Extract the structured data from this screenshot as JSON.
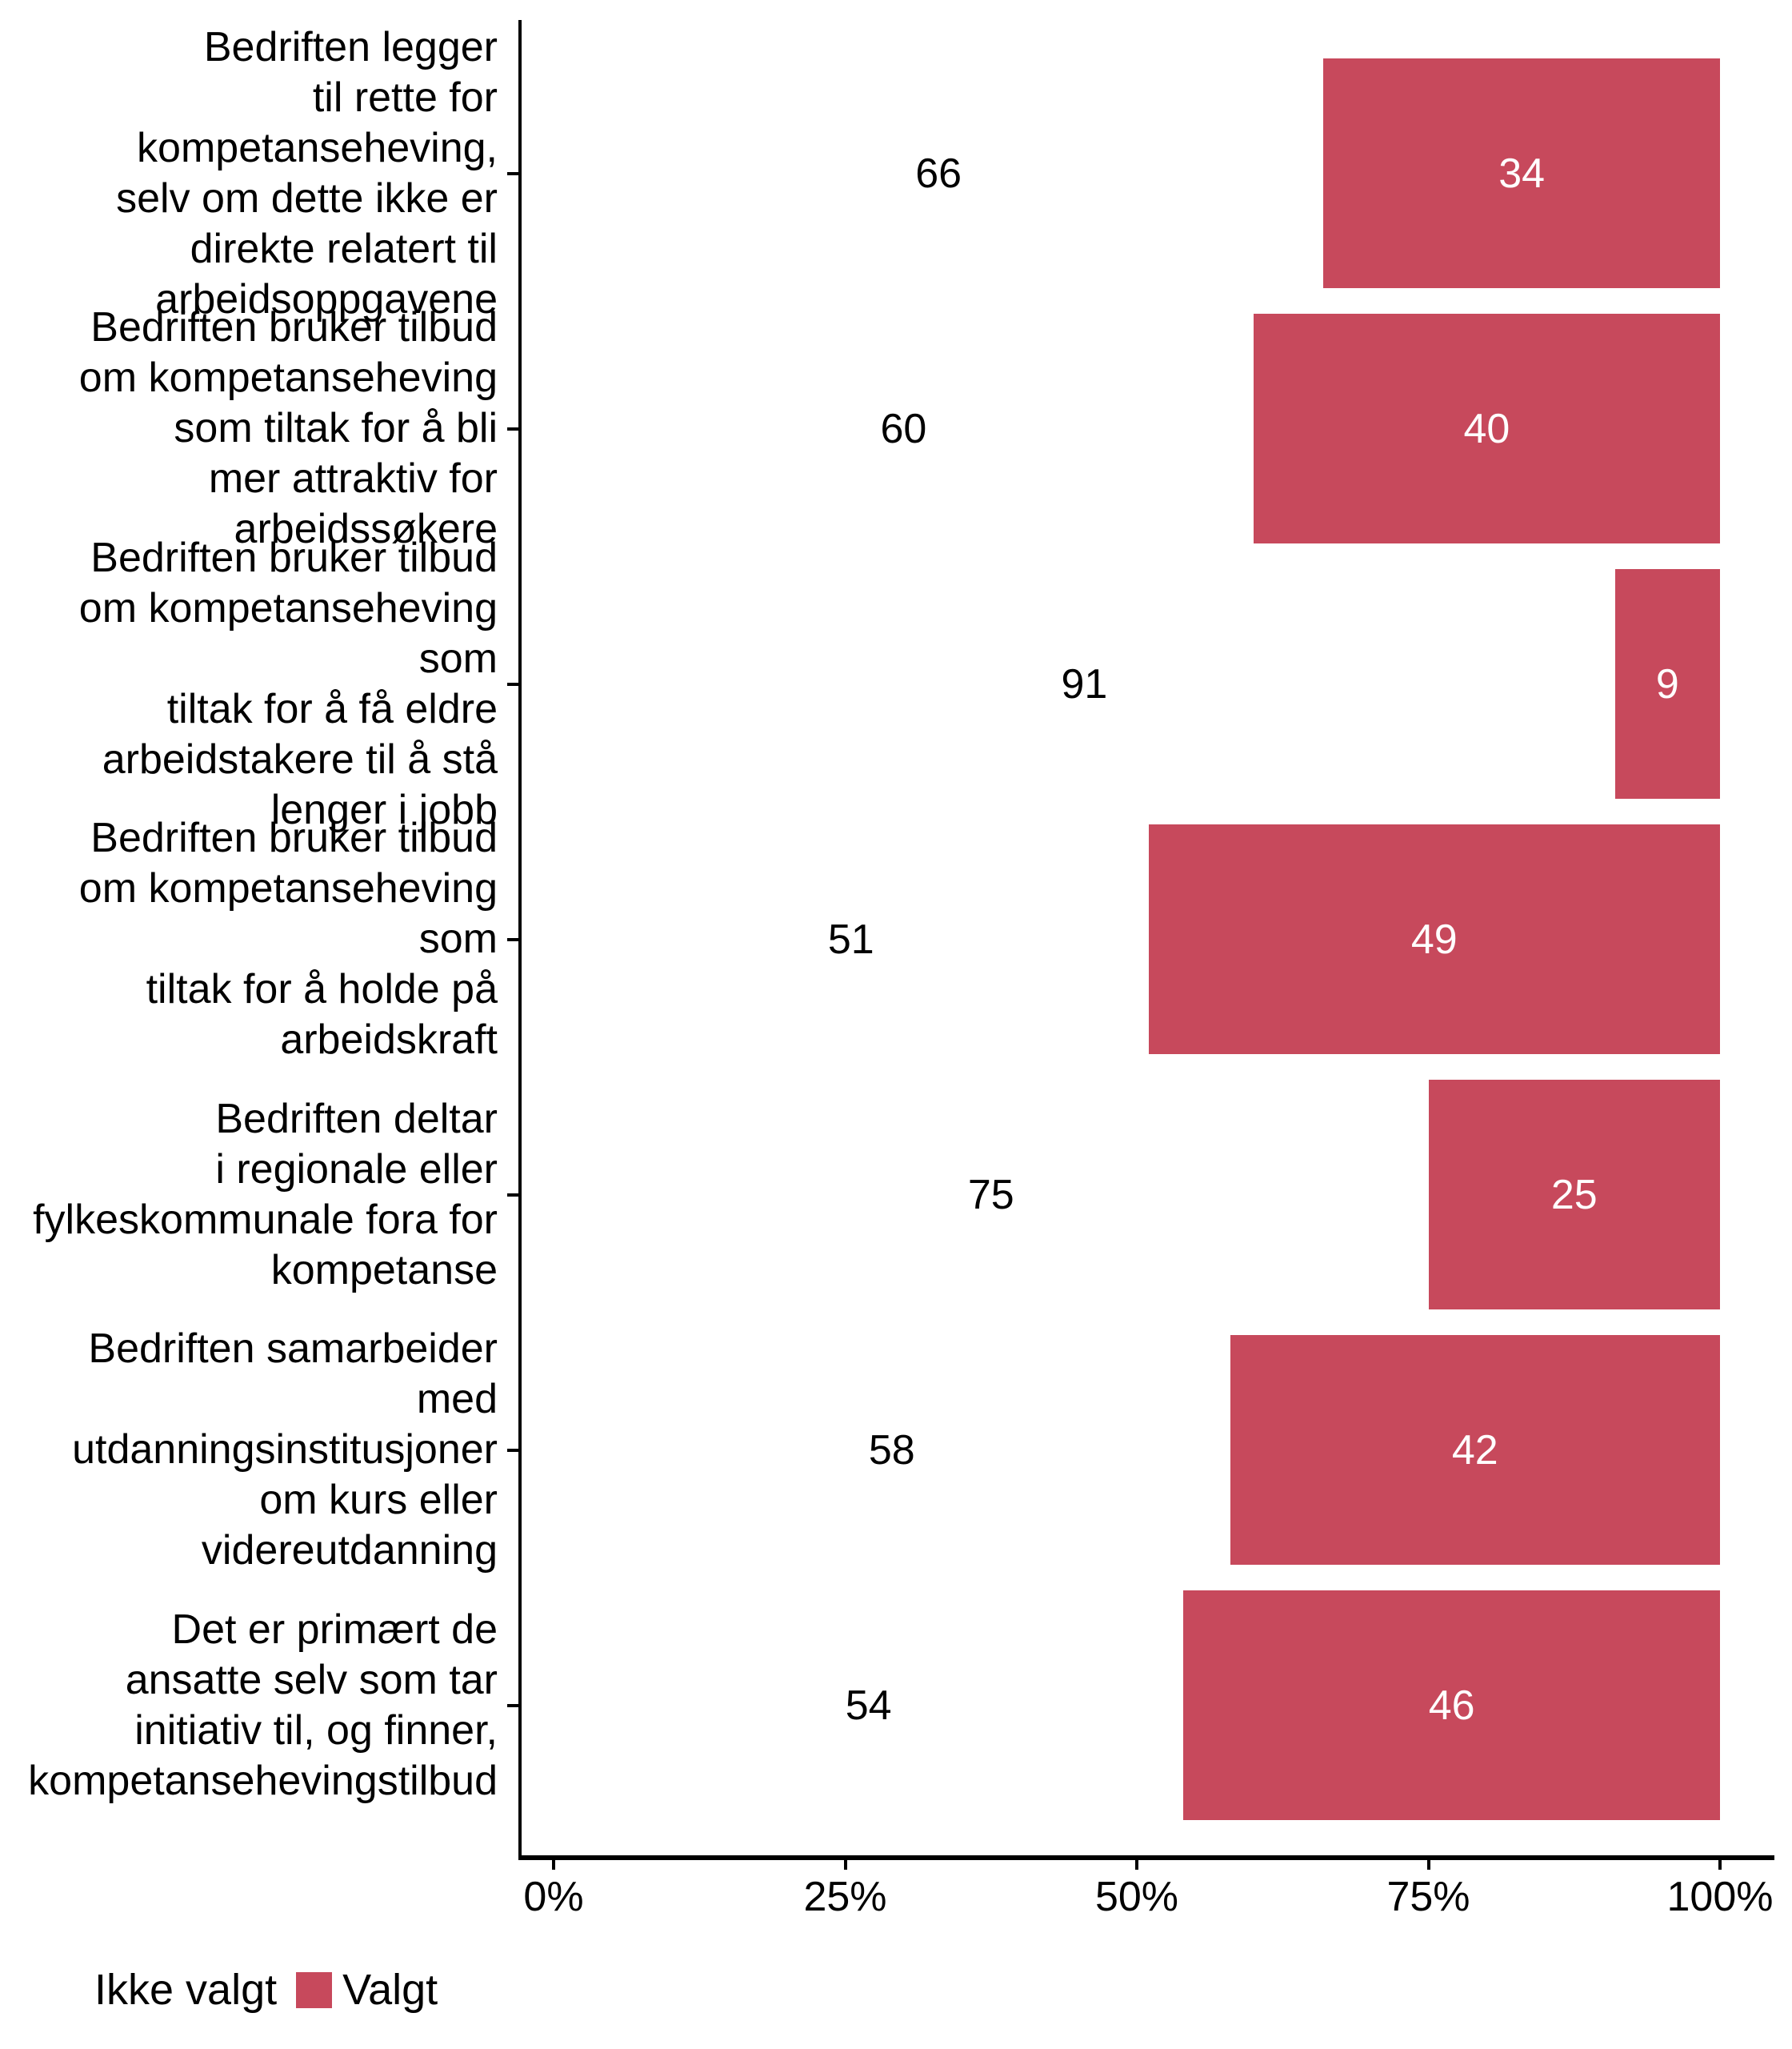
{
  "chart_data": {
    "type": "bar",
    "orientation": "horizontal",
    "stacked_percent": true,
    "title": "",
    "xlabel": "",
    "ylabel": "",
    "grid": false,
    "categories": [
      "Bedriften legger\ntil rette for\nkompetanseheving,\nselv om dette ikke er\ndirekte relatert til\narbeidsoppgavene",
      "Bedriften bruker tilbud\nom kompetanseheving\nsom tiltak for å bli\nmer attraktiv for\narbeidssøkere",
      "Bedriften bruker tilbud\nom kompetanseheving som\ntiltak for å få eldre\narbeidstakere til å stå\nlenger i jobb",
      "Bedriften bruker tilbud\nom kompetanseheving som\ntiltak for å holde på\narbeidskraft",
      "Bedriften deltar\ni regionale eller\nfylkeskommunale fora for\nkompetanse",
      "Bedriften samarbeider med\nutdanningsinstitusjoner\nom kurs eller\nvidereutdanning",
      "Det er primært de\nansatte selv som tar\ninitiativ til, og finner,\nkompetansehevingstilbud"
    ],
    "series": [
      {
        "name": "Ikke valgt",
        "color": "#FFFFFF",
        "values": [
          66,
          60,
          91,
          51,
          75,
          58,
          54
        ]
      },
      {
        "name": "Valgt",
        "color": "#C7495C",
        "values": [
          34,
          40,
          9,
          49,
          25,
          42,
          46
        ]
      }
    ],
    "x_axis": {
      "range": [
        0,
        100
      ],
      "tick_values": [
        0,
        25,
        50,
        75,
        100
      ],
      "tick_labels": [
        "0%",
        "25%",
        "50%",
        "75%",
        "100%"
      ]
    },
    "legend": {
      "position": "bottom-left",
      "items": [
        {
          "label": "Ikke valgt",
          "color": "#FFFFFF"
        },
        {
          "label": "Valgt",
          "color": "#C7495C"
        }
      ]
    }
  },
  "colors": {
    "bar_red": "#C7495C",
    "bar_white": "#FFFFFF",
    "axis": "#000000",
    "text": "#000000",
    "value_on_red": "#FFFFFF"
  }
}
